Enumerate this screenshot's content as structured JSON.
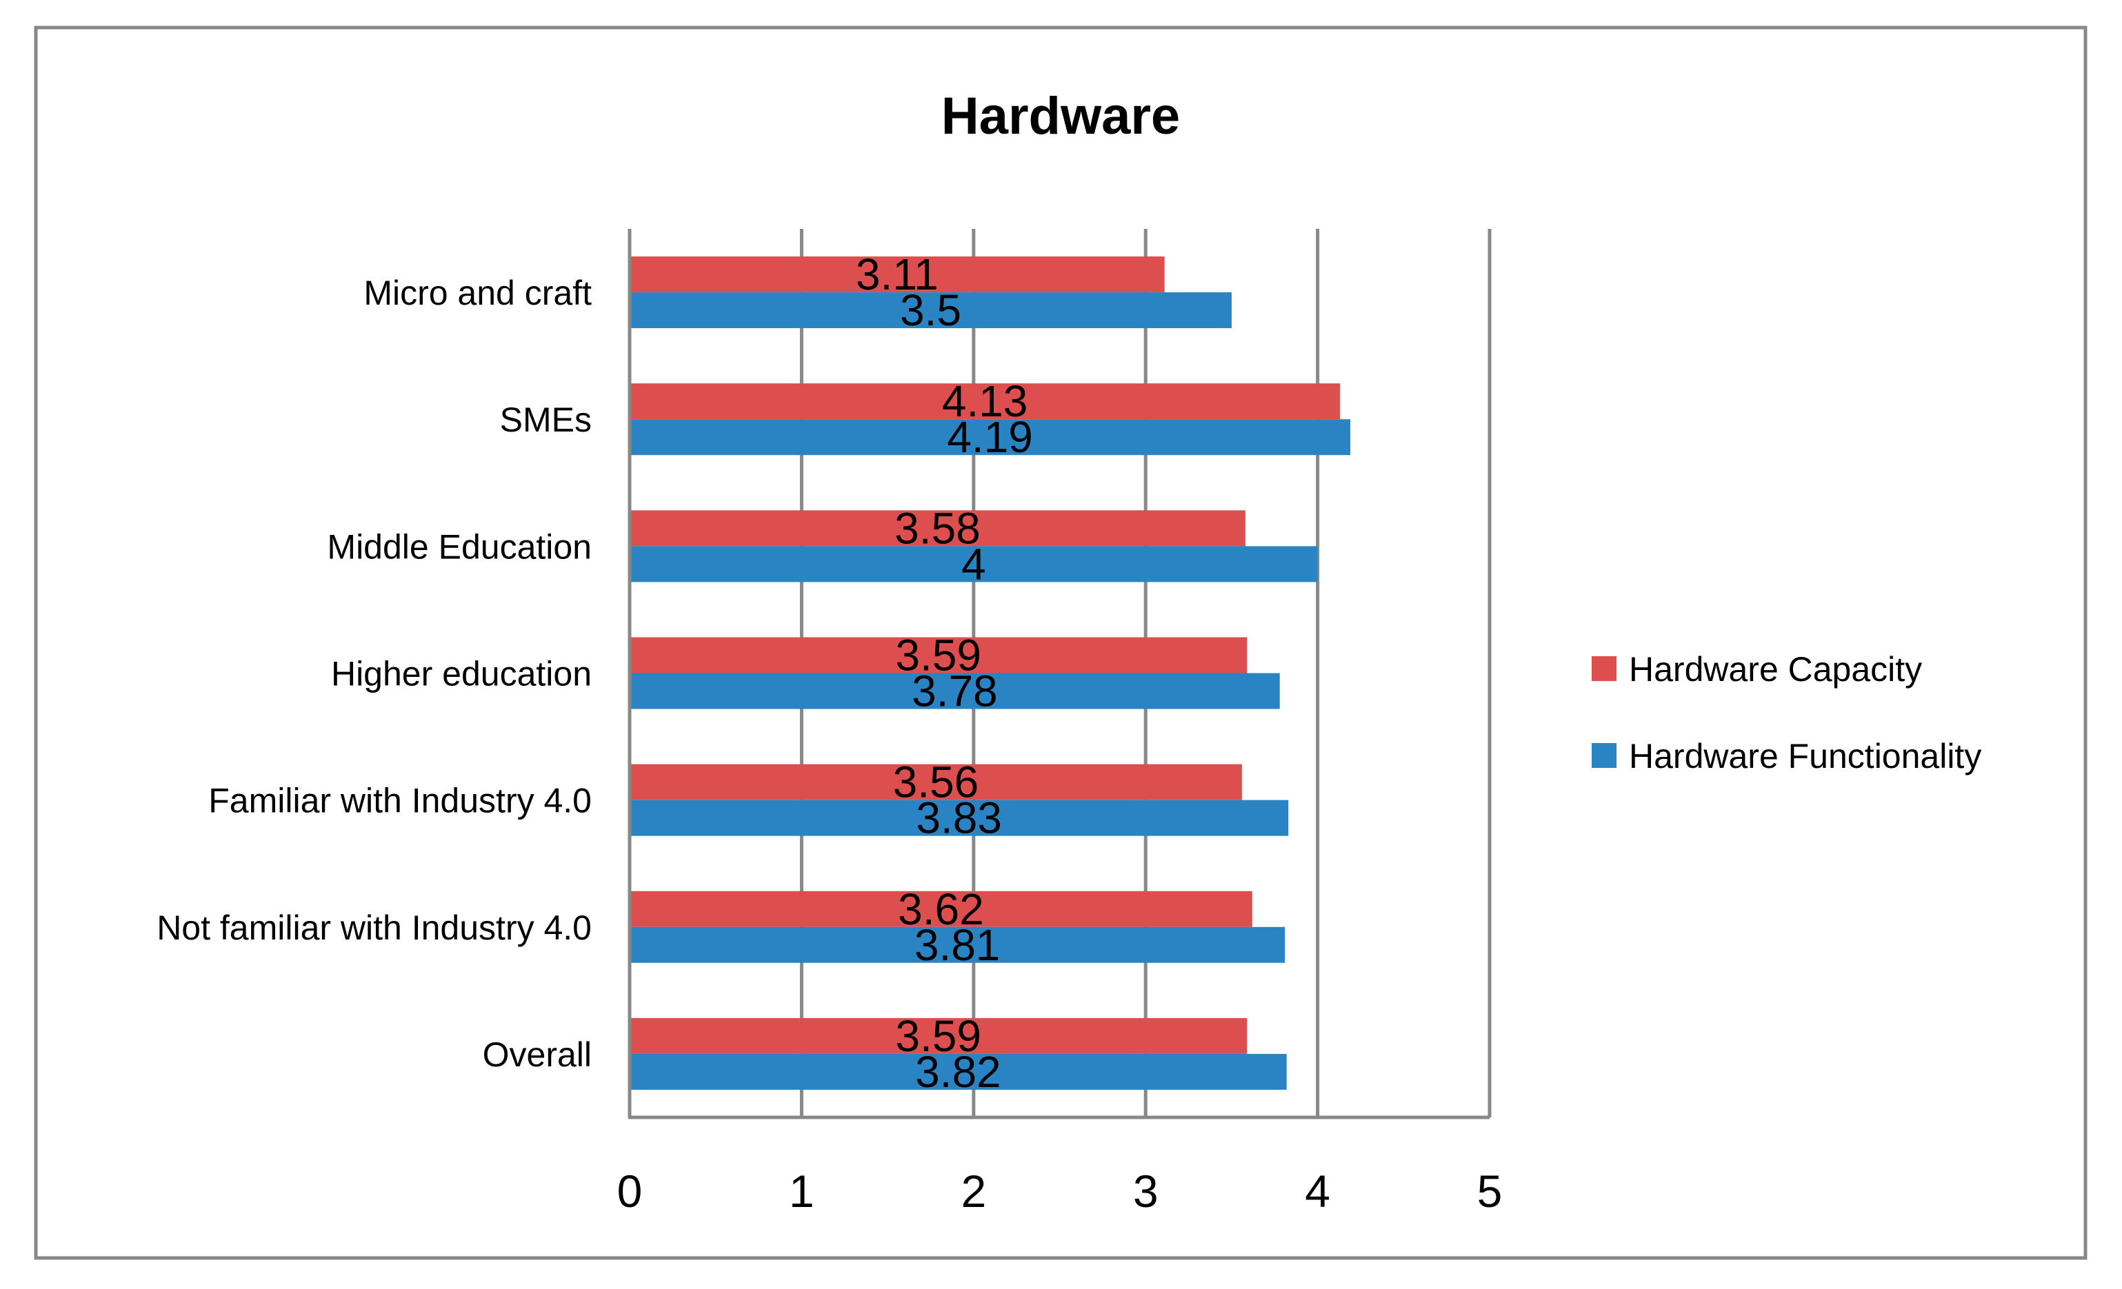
{
  "chart_data": {
    "type": "bar",
    "orientation": "horizontal",
    "title": "Hardware",
    "xlabel": "",
    "ylabel": "",
    "xlim": [
      0,
      5
    ],
    "x_ticks": [
      "0",
      "1",
      "2",
      "3",
      "4",
      "5"
    ],
    "grid": true,
    "legend_position": "right",
    "categories": [
      "Micro and craft",
      "SMEs",
      "Middle Education",
      "Higher education",
      "Familiar with Industry 4.0",
      "Not familiar with Industry 4.0",
      "Overall"
    ],
    "series": [
      {
        "name": "Hardware Capacity",
        "color": "#DD4F4F",
        "values": [
          3.11,
          4.13,
          3.58,
          3.59,
          3.56,
          3.62,
          3.59
        ],
        "labels": [
          "3.11",
          "4.13",
          "3.58",
          "3.59",
          "3.56",
          "3.62",
          "3.59"
        ]
      },
      {
        "name": "Hardware Functionality",
        "color": "#2A83C2",
        "values": [
          3.5,
          4.19,
          4,
          3.78,
          3.83,
          3.81,
          3.82
        ],
        "labels": [
          "3.5",
          "4.19",
          "4",
          "3.78",
          "3.83",
          "3.81",
          "3.82"
        ]
      }
    ]
  }
}
